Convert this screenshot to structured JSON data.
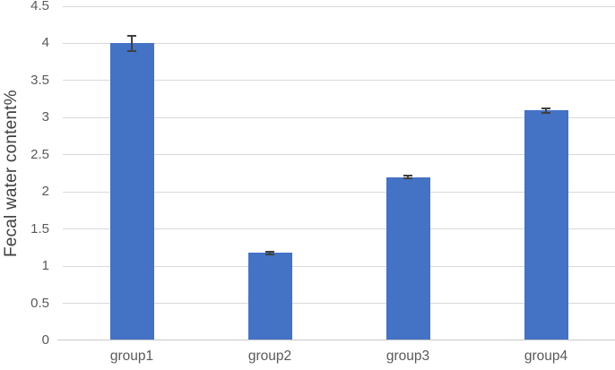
{
  "chart_data": {
    "type": "bar",
    "title": "",
    "xlabel": "",
    "ylabel": "Fecal water content%",
    "categories": [
      "group1",
      "group2",
      "group3",
      "group4"
    ],
    "series": [
      {
        "name": "Fecal water content%",
        "values": [
          4.0,
          1.18,
          2.2,
          3.1
        ],
        "errors": [
          0.1,
          0.02,
          0.02,
          0.03
        ]
      }
    ],
    "ylim": [
      0,
      4.5
    ],
    "ytick_step": 0.5,
    "yticks": [
      "0",
      "0.5",
      "1",
      "1.5",
      "2",
      "2.5",
      "3",
      "3.5",
      "4",
      "4.5"
    ],
    "grid": "horizontal",
    "legend": "none",
    "colors": {
      "bar": "#4472C4",
      "gridline": "#D9D9D9",
      "axis_line": "#C8C8C8",
      "error_bar": "#404040",
      "tick_text": "#595959",
      "axis_title_text": "#404040",
      "background": "#FFFFFF"
    }
  }
}
